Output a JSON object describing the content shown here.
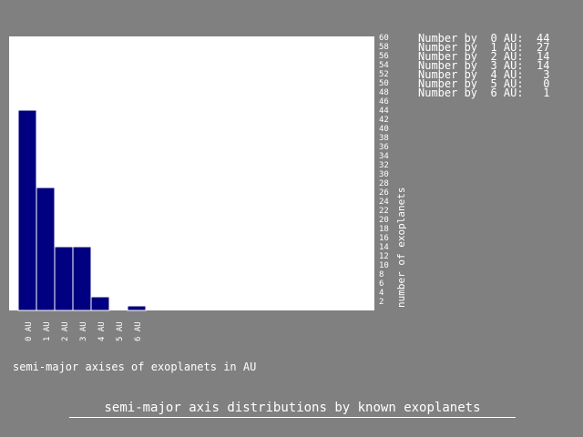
{
  "chart_data": {
    "type": "bar",
    "title": "semi-major axis distributions by known exoplanets",
    "xlabel": "semi-major axises of exoplanets in AU",
    "ylabel": "number of exoplanets",
    "categories": [
      "0 AU",
      "1 AU",
      "2 AU",
      "3 AU",
      "4 AU",
      "5 AU",
      "6 AU"
    ],
    "values": [
      44,
      27,
      14,
      14,
      3,
      0,
      1
    ],
    "ylim": [
      0,
      60
    ],
    "yticks": [
      2,
      4,
      6,
      8,
      10,
      12,
      14,
      16,
      18,
      20,
      22,
      24,
      26,
      28,
      30,
      32,
      34,
      36,
      38,
      40,
      42,
      44,
      46,
      48,
      50,
      52,
      54,
      56,
      58,
      60
    ],
    "bar_color": "#000080",
    "plot_background": "#ffffff",
    "grid": false
  },
  "stats": [
    {
      "label": "Number by  0 AU:",
      "value": "44"
    },
    {
      "label": "Number by  1 AU:",
      "value": "27"
    },
    {
      "label": "Number by  2 AU:",
      "value": "14"
    },
    {
      "label": "Number by  3 AU:",
      "value": "14"
    },
    {
      "label": "Number by  4 AU:",
      "value": "3"
    },
    {
      "label": "Number by  5 AU:",
      "value": "0"
    },
    {
      "label": "Number by  6 AU:",
      "value": "1"
    }
  ],
  "colors": {
    "background": "#808080",
    "text": "#ffffff"
  }
}
